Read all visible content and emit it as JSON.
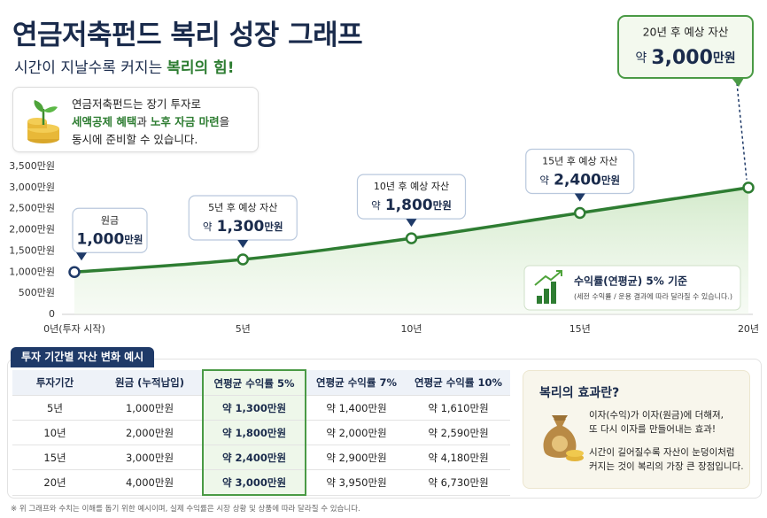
{
  "header": {
    "title": "연금저축펀드 복리 성장 그래프",
    "subtitle": "시간이 지날수록 커지는",
    "subtitle_highlight": "복리의 힘!"
  },
  "intro": {
    "line1": "연금저축펀드는 장기 투자로",
    "highlight1": "세액공제 혜택",
    "join": "과",
    "highlight2": "노후 자금 마련",
    "tail": "을",
    "line3": "동시에 준비할 수 있습니다."
  },
  "chart_data": {
    "type": "line",
    "x": [
      0,
      5,
      10,
      15,
      20
    ],
    "values": [
      1000,
      1300,
      1800,
      2400,
      3000
    ],
    "value_labels": [
      "1,000",
      "1,300",
      "1,800",
      "2,400",
      "3,000"
    ],
    "value_unit": "만원",
    "value_prefix": "약",
    "callout_titles": [
      "원금",
      "5년 후 예상 자산",
      "10년 후 예상 자산",
      "15년 후 예상 자산",
      "20년 후 예상 자산"
    ],
    "color": "#2e7d32",
    "xlim": [
      0,
      20
    ],
    "xticks": [
      {
        "value": 0,
        "label": "0년(투자 시작)"
      },
      {
        "value": 5,
        "label": "5년"
      },
      {
        "value": 10,
        "label": "10년"
      },
      {
        "value": 15,
        "label": "15년"
      },
      {
        "value": 20,
        "label": "20년"
      }
    ],
    "ylim": [
      0,
      3500
    ],
    "yticks": [
      0,
      {
        "value": 500,
        "label": "500만원"
      },
      {
        "value": 1000,
        "label": "1,000만원"
      },
      {
        "value": 1500,
        "label": "1,500만원"
      },
      {
        "value": 2000,
        "label": "2,000만원"
      },
      {
        "value": 2500,
        "label": "2,500만원"
      },
      {
        "value": 3000,
        "label": "3,000만원"
      },
      {
        "value": 3500,
        "label": "3,500만원"
      }
    ],
    "grid": false,
    "annotation": {
      "title": "수익률(연평균) 5% 기준",
      "note": "(세전 수익률 / 운용 결과에 따라 달라질 수 있습니다.)"
    }
  },
  "table": {
    "title": "투자 기간별 자산 변화 예시",
    "headers": [
      "투자기간",
      "원금 (누적납입)",
      "연평균 수익률 5%",
      "연평균 수익률 7%",
      "연평균 수익률 10%"
    ],
    "rows": [
      [
        "5년",
        "1,000만원",
        "약 1,300만원",
        "약 1,400만원",
        "약 1,610만원"
      ],
      [
        "10년",
        "2,000만원",
        "약 1,800만원",
        "약 2,000만원",
        "약 2,590만원"
      ],
      [
        "15년",
        "3,000만원",
        "약 2,400만원",
        "약 2,900만원",
        "약 4,180만원"
      ],
      [
        "20년",
        "4,000만원",
        "약 3,000만원",
        "약 3,950만원",
        "약 6,730만원"
      ]
    ]
  },
  "compound": {
    "title": "복리의 효과란?",
    "lines": [
      "이자(수익)가 이자(원금)에 더해져,",
      "또 다시 이자를 만들어내는 효과!",
      "시간이 길어질수록 자산이 눈덩이처럼",
      "커지는 것이 복리의 가장 큰 장점입니다."
    ]
  },
  "footnote": "※ 위 그래프와 수치는 이해를 돕기 위한 예시이며, 실제 수익률은 시장 상황 및 상품에 따라 달라질 수 있습니다."
}
